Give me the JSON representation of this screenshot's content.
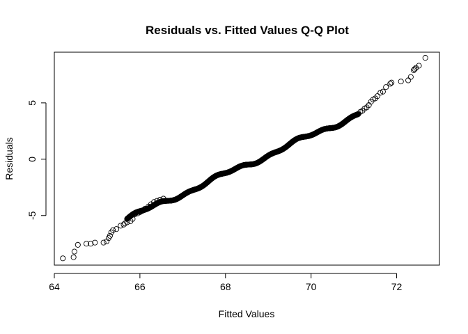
{
  "chart_data": {
    "type": "scatter",
    "title": "Residuals vs. Fitted Values Q-Q Plot",
    "xlabel": "Fitted Values",
    "ylabel": "Residuals",
    "xlim": [
      64.0,
      73.0
    ],
    "ylim": [
      -9.4,
      9.5
    ],
    "x_ticks": [
      64,
      66,
      68,
      70,
      72
    ],
    "y_ticks": [
      -5,
      0,
      5
    ],
    "grid": false,
    "legend": "none",
    "marker": "open-circle",
    "x_range": [
      64.2,
      72.7
    ],
    "y_range": [
      -8.8,
      9.0
    ],
    "x_cluster_start": 65.7,
    "x_cluster_end": 71.1,
    "y_cluster_start": -5.3,
    "y_cluster_end": 4.0,
    "cluster_count": 900,
    "x": [
      64.2,
      64.45,
      64.47,
      64.55,
      64.75,
      64.85,
      64.95,
      65.15,
      65.22,
      65.27,
      65.3,
      65.33,
      65.37,
      65.45,
      65.55,
      65.62,
      65.65,
      65.7,
      65.78,
      65.83,
      65.88,
      65.95,
      66.0,
      66.05,
      66.12,
      66.2,
      66.26,
      66.33,
      66.4,
      66.47,
      66.55
    ],
    "y": [
      -8.8,
      -8.7,
      -8.2,
      -7.6,
      -7.5,
      -7.5,
      -7.4,
      -7.4,
      -7.3,
      -7.0,
      -6.8,
      -6.5,
      -6.3,
      -6.2,
      -5.9,
      -5.8,
      -5.7,
      -5.6,
      -5.5,
      -5.3,
      -4.9,
      -4.8,
      -4.7,
      -4.6,
      -4.4,
      -4.2,
      -4.0,
      -3.8,
      -3.7,
      -3.6,
      -3.5
    ],
    "x_upper": [
      71.1,
      71.15,
      71.2,
      71.25,
      71.3,
      71.35,
      71.4,
      71.45,
      71.5,
      71.55,
      71.62,
      71.68,
      71.75,
      71.85,
      71.88,
      72.1,
      72.27,
      72.33,
      72.4,
      72.42,
      72.45,
      72.52,
      72.67
    ],
    "y_upper": [
      4.0,
      4.2,
      4.3,
      4.5,
      4.6,
      4.8,
      5.1,
      5.3,
      5.4,
      5.6,
      5.9,
      6.0,
      6.4,
      6.7,
      6.8,
      6.9,
      7.0,
      7.3,
      7.9,
      8.0,
      8.1,
      8.3,
      9.0
    ]
  }
}
